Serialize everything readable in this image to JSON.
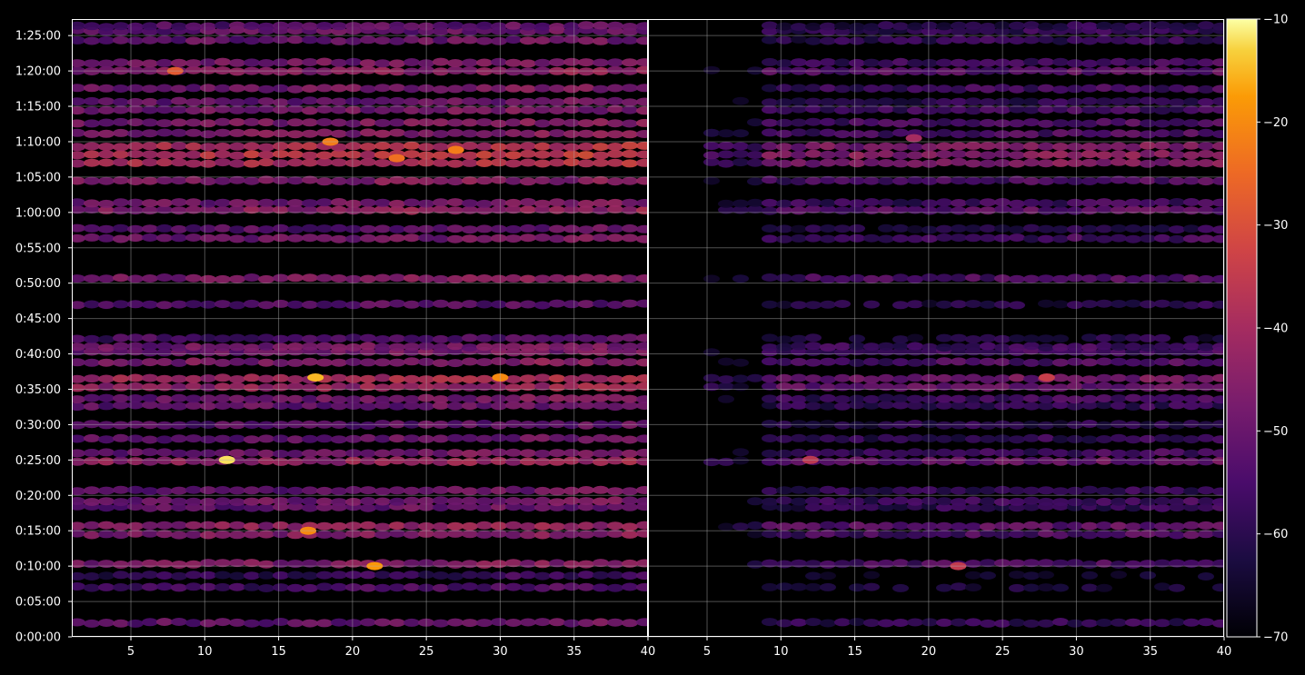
{
  "chart_data": {
    "type": "heatmap",
    "title": "",
    "xlabel": "",
    "ylabel": "",
    "background": "#000000",
    "colormap": "inferno",
    "grid": true,
    "panels": [
      {
        "name": "",
        "xlim": [
          1,
          40
        ],
        "x_ticks": [
          "5",
          "10",
          "15",
          "20",
          "25",
          "30",
          "35",
          "40"
        ],
        "x_tick_values": [
          5,
          10,
          15,
          20,
          25,
          30,
          35,
          40
        ]
      },
      {
        "name": "",
        "xlim": [
          1,
          40
        ],
        "x_ticks": [
          "5",
          "10",
          "15",
          "20",
          "25",
          "30",
          "35",
          "40"
        ],
        "x_tick_values": [
          5,
          10,
          15,
          20,
          25,
          30,
          35,
          40
        ]
      }
    ],
    "y_ticks": [
      "0:00:00",
      "0:05:00",
      "0:10:00",
      "0:15:00",
      "0:20:00",
      "0:25:00",
      "0:30:00",
      "0:35:00",
      "0:40:00",
      "0:45:00",
      "0:50:00",
      "0:55:00",
      "1:00:00",
      "1:05:00",
      "1:10:00",
      "1:15:00",
      "1:20:00",
      "1:25:00"
    ],
    "y_tick_values_seconds": [
      0,
      300,
      600,
      900,
      1200,
      1500,
      1800,
      2100,
      2400,
      2700,
      3000,
      3300,
      3600,
      3900,
      4200,
      4500,
      4800,
      5100
    ],
    "ylim_seconds": [
      0,
      5240
    ],
    "colorbar": {
      "range": [
        -70,
        -10
      ],
      "ticks": [
        "−10",
        "−20",
        "−30",
        "−40",
        "−50",
        "−60",
        "−70"
      ],
      "tick_values": [
        -10,
        -20,
        -30,
        -40,
        -50,
        -60,
        -70
      ]
    },
    "row_bands_seconds_level": [
      [
        120,
        -52
      ],
      [
        420,
        -57
      ],
      [
        520,
        -60
      ],
      [
        620,
        -48
      ],
      [
        870,
        -48
      ],
      [
        940,
        -45
      ],
      [
        1100,
        -52
      ],
      [
        1150,
        -50
      ],
      [
        1240,
        -52
      ],
      [
        1490,
        -44
      ],
      [
        1560,
        -50
      ],
      [
        1680,
        -52
      ],
      [
        1800,
        -54
      ],
      [
        1960,
        -52
      ],
      [
        2020,
        -50
      ],
      [
        2120,
        -44
      ],
      [
        2190,
        -42
      ],
      [
        2330,
        -48
      ],
      [
        2420,
        -50
      ],
      [
        2460,
        -50
      ],
      [
        2530,
        -56
      ],
      [
        2820,
        -55
      ],
      [
        3040,
        -48
      ],
      [
        3380,
        -50
      ],
      [
        3460,
        -54
      ],
      [
        3620,
        -46
      ],
      [
        3680,
        -50
      ],
      [
        3870,
        -48
      ],
      [
        4020,
        -40
      ],
      [
        4090,
        -38
      ],
      [
        4160,
        -40
      ],
      [
        4270,
        -48
      ],
      [
        4360,
        -48
      ],
      [
        4470,
        -50
      ],
      [
        4540,
        -52
      ],
      [
        4650,
        -50
      ],
      [
        4800,
        -46
      ],
      [
        4870,
        -50
      ],
      [
        5060,
        -52
      ],
      [
        5140,
        -52
      ],
      [
        5180,
        -54
      ]
    ],
    "hotspots": [
      {
        "panel": 0,
        "x": 11.5,
        "t": 1500,
        "level": -12
      },
      {
        "panel": 0,
        "x": 17.5,
        "t": 2200,
        "level": -15
      },
      {
        "panel": 0,
        "x": 21.5,
        "t": 600,
        "level": -18
      },
      {
        "panel": 0,
        "x": 18.5,
        "t": 4200,
        "level": -22
      },
      {
        "panel": 0,
        "x": 27,
        "t": 4130,
        "level": -22
      },
      {
        "panel": 0,
        "x": 23,
        "t": 4060,
        "level": -24
      },
      {
        "panel": 0,
        "x": 8,
        "t": 4800,
        "level": -28
      },
      {
        "panel": 0,
        "x": 30,
        "t": 2200,
        "level": -20
      },
      {
        "panel": 0,
        "x": 17,
        "t": 900,
        "level": -20
      },
      {
        "panel": 1,
        "x": 12,
        "t": 1500,
        "level": -36
      },
      {
        "panel": 1,
        "x": 19,
        "t": 4230,
        "level": -40
      },
      {
        "panel": 1,
        "x": 28,
        "t": 2200,
        "level": -34
      },
      {
        "panel": 1,
        "x": 22,
        "t": 600,
        "level": -35
      }
    ]
  }
}
